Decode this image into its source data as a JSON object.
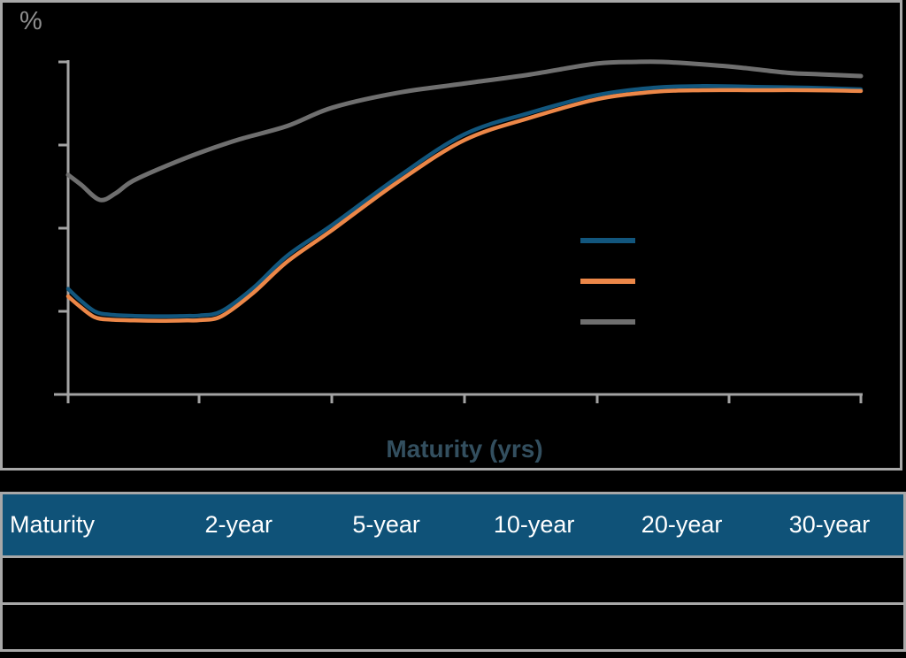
{
  "page": {
    "background": "#000000"
  },
  "chart": {
    "y_axis_symbol": "%",
    "x_axis_title": "Maturity (yrs)",
    "x_axis_title_color": "#334f5f",
    "axis_color": "#a3a3a3",
    "panel_border_color": "#a8a8a8",
    "legend": {
      "items": [
        {
          "name": "series-1-blue",
          "color": "#12567d",
          "label": ""
        },
        {
          "name": "series-2-orange",
          "color": "#ec8748",
          "label": ""
        },
        {
          "name": "series-3-gray",
          "color": "#6f6f6f",
          "label": ""
        }
      ]
    }
  },
  "chart_data": {
    "type": "line",
    "title": "",
    "xlabel": "Maturity (yrs)",
    "ylabel": "%",
    "xlim": [
      0,
      30
    ],
    "x_ticks": [
      0,
      5,
      10,
      15,
      20,
      25,
      30
    ],
    "x_tick_labels_visible": false,
    "y_ticks_relative_units": [
      0,
      1,
      2,
      3,
      4
    ],
    "y_tick_labels_visible": false,
    "grid": false,
    "legend_position": "center-right",
    "note": "Axis tick labels, legend labels and table cell values are rendered invisibly (black/transparent) in the source image. Y values are expressed in unlabeled tick units: 0 = x-axis baseline, 1 = one tick interval.",
    "series": [
      {
        "name": "series-1-blue",
        "color": "#12567d",
        "points": [
          [
            0,
            1.27
          ],
          [
            0.4,
            1.15
          ],
          [
            1,
            1.0
          ],
          [
            1.6,
            0.96
          ],
          [
            2.5,
            0.945
          ],
          [
            3.5,
            0.94
          ],
          [
            4.5,
            0.945
          ],
          [
            5,
            0.95
          ],
          [
            5.8,
            1.0
          ],
          [
            7,
            1.28
          ],
          [
            8.3,
            1.67
          ],
          [
            10,
            2.04
          ],
          [
            12.5,
            2.62
          ],
          [
            15,
            3.13
          ],
          [
            17.5,
            3.39
          ],
          [
            20,
            3.6
          ],
          [
            22.2,
            3.69
          ],
          [
            24,
            3.71
          ],
          [
            26,
            3.7
          ],
          [
            28,
            3.69
          ],
          [
            30,
            3.67
          ]
        ]
      },
      {
        "name": "series-2-orange",
        "color": "#ec8748",
        "points": [
          [
            0,
            1.18
          ],
          [
            0.4,
            1.07
          ],
          [
            1,
            0.93
          ],
          [
            1.6,
            0.9
          ],
          [
            2.5,
            0.89
          ],
          [
            3.5,
            0.885
          ],
          [
            4.5,
            0.89
          ],
          [
            5,
            0.895
          ],
          [
            5.8,
            0.94
          ],
          [
            7,
            1.22
          ],
          [
            8.3,
            1.6
          ],
          [
            10,
            1.98
          ],
          [
            12.5,
            2.56
          ],
          [
            15,
            3.06
          ],
          [
            17.5,
            3.33
          ],
          [
            20,
            3.55
          ],
          [
            22.2,
            3.64
          ],
          [
            24,
            3.66
          ],
          [
            26,
            3.66
          ],
          [
            28,
            3.66
          ],
          [
            30,
            3.65
          ]
        ]
      },
      {
        "name": "series-3-gray",
        "color": "#6f6f6f",
        "points": [
          [
            0,
            2.64
          ],
          [
            0.5,
            2.52
          ],
          [
            1.2,
            2.34
          ],
          [
            1.8,
            2.42
          ],
          [
            2.4,
            2.56
          ],
          [
            3.5,
            2.72
          ],
          [
            5,
            2.91
          ],
          [
            6.5,
            3.07
          ],
          [
            8.3,
            3.23
          ],
          [
            10,
            3.45
          ],
          [
            12.5,
            3.63
          ],
          [
            15,
            3.74
          ],
          [
            17.5,
            3.85
          ],
          [
            20,
            3.98
          ],
          [
            21.5,
            4.0
          ],
          [
            22.5,
            4.0
          ],
          [
            24,
            3.97
          ],
          [
            25.5,
            3.93
          ],
          [
            27.2,
            3.87
          ],
          [
            28.5,
            3.85
          ],
          [
            30,
            3.83
          ]
        ]
      }
    ]
  },
  "table": {
    "header_bg": "#0f5278",
    "header_text_color": "#ffffff",
    "border_color": "#a8a8a8",
    "columns": [
      "Maturity",
      "2-year",
      "5-year",
      "10-year",
      "20-year",
      "30-year"
    ],
    "rows": [
      [
        "",
        "",
        "",
        "",
        "",
        ""
      ],
      [
        "",
        "",
        "",
        "",
        "",
        ""
      ]
    ]
  }
}
